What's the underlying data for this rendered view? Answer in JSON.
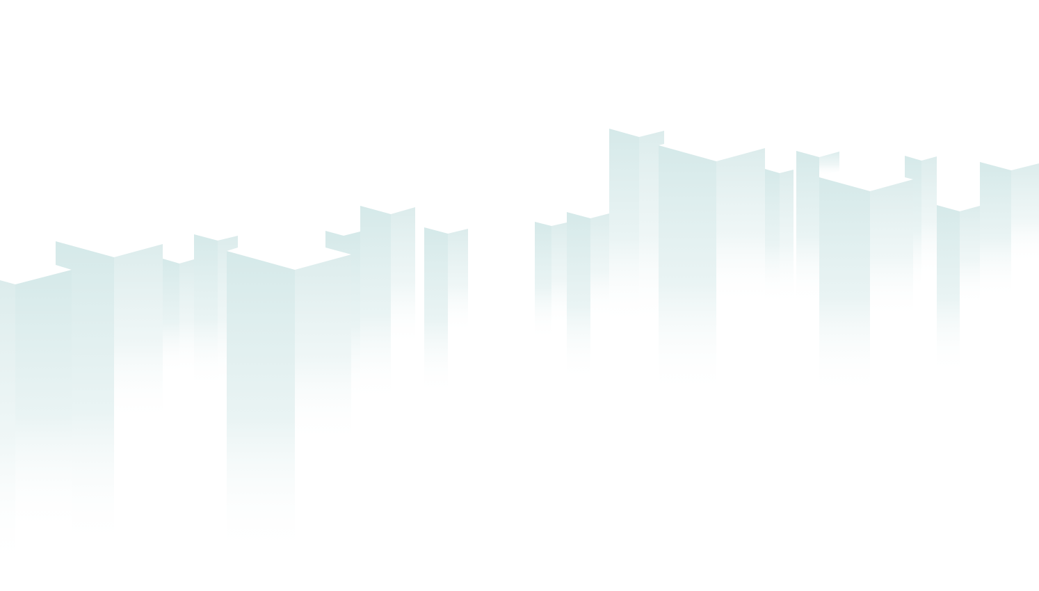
{
  "background": {
    "name": "isometric-skyline-background",
    "base_color": "#ffffff",
    "building_color": "#d6eaea",
    "building_shadow_color": "#cfe5e5"
  }
}
